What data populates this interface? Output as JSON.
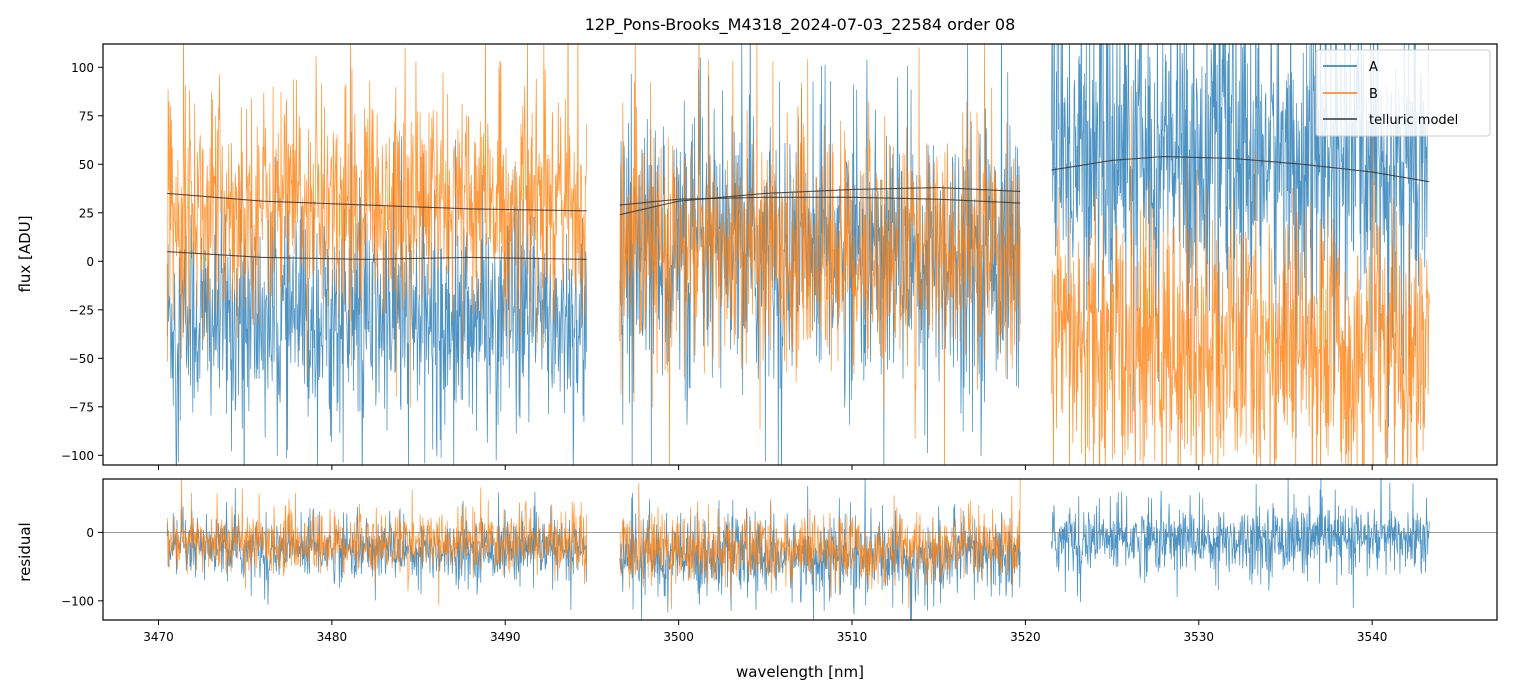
{
  "colors": {
    "A": "#1f77b4",
    "B": "#ff7f0e",
    "telluric": "#333333",
    "zero": "#808080"
  },
  "chart_data": [
    {
      "panel": "top",
      "type": "line",
      "title": "12P_Pons-Brooks_M4318_2024-07-03_22584  order 08",
      "xlabel": "",
      "ylabel": "flux [ADU]",
      "xlim": [
        3466.8,
        3547.2
      ],
      "ylim": [
        -105,
        112
      ],
      "yticks": [
        100,
        75,
        50,
        25,
        0,
        -25,
        -50,
        -75,
        -100
      ],
      "ytick_labels": [
        "100",
        "75",
        "50",
        "25",
        "0",
        "−25",
        "−50",
        "−75",
        "−100"
      ],
      "legend": {
        "location": "top-right",
        "entries": [
          "A",
          "B",
          "telluric model"
        ]
      },
      "segments": [
        {
          "x_range": [
            3470.5,
            3494.7
          ],
          "A": {
            "mean": -30,
            "noise_std": 28,
            "telluric": [
              [
                3470.5,
                5
              ],
              [
                3476,
                2
              ],
              [
                3482,
                1
              ],
              [
                3488,
                2
              ],
              [
                3494.7,
                1
              ]
            ]
          },
          "B": {
            "mean": 30,
            "noise_std": 28,
            "telluric": [
              [
                3470.5,
                35
              ],
              [
                3476,
                31
              ],
              [
                3482,
                29
              ],
              [
                3488,
                27
              ],
              [
                3494.7,
                26
              ]
            ]
          }
        },
        {
          "x_range": [
            3496.6,
            3519.7
          ],
          "A": {
            "mean": 5,
            "noise_std": 35,
            "telluric": [
              [
                3496.6,
                24
              ],
              [
                3500,
                31
              ],
              [
                3505,
                35
              ],
              [
                3510,
                37
              ],
              [
                3515,
                38
              ],
              [
                3519.7,
                36
              ]
            ]
          },
          "B": {
            "mean": 5,
            "noise_std": 30,
            "telluric": [
              [
                3496.6,
                29
              ],
              [
                3500,
                32
              ],
              [
                3505,
                33
              ],
              [
                3510,
                33
              ],
              [
                3515,
                32
              ],
              [
                3519.7,
                30
              ]
            ]
          }
        },
        {
          "x_range": [
            3521.5,
            3543.3
          ],
          "A": {
            "mean": 55,
            "noise_std": 40,
            "telluric": [
              [
                3521.5,
                47
              ],
              [
                3525,
                52
              ],
              [
                3528,
                54
              ],
              [
                3532,
                53
              ],
              [
                3536,
                50
              ],
              [
                3540,
                46
              ],
              [
                3543.3,
                41
              ]
            ]
          },
          "B": {
            "mean": -45,
            "noise_std": 35,
            "telluric": null
          }
        }
      ]
    },
    {
      "panel": "bottom",
      "type": "line",
      "xlabel": "wavelength [nm]",
      "ylabel": "residual",
      "xlim": [
        3466.8,
        3547.2
      ],
      "ylim": [
        -128,
        78
      ],
      "yticks": [
        0,
        -100
      ],
      "ytick_labels": [
        "0",
        "−100"
      ],
      "xticks": [
        3470,
        3480,
        3490,
        3500,
        3510,
        3520,
        3530,
        3540
      ],
      "xtick_labels": [
        "3470",
        "3480",
        "3490",
        "3500",
        "3510",
        "3520",
        "3530",
        "3540"
      ],
      "zero_line": 0,
      "segments": [
        {
          "x_range": [
            3470.5,
            3494.7
          ],
          "A": {
            "mean": -25,
            "noise_std": 22
          },
          "B": {
            "mean": -15,
            "noise_std": 22
          }
        },
        {
          "x_range": [
            3496.6,
            3519.7
          ],
          "A": {
            "mean": -35,
            "noise_std": 28
          },
          "B": {
            "mean": -25,
            "noise_std": 25
          }
        },
        {
          "x_range": [
            3521.5,
            3543.3
          ],
          "A": {
            "mean": -10,
            "noise_std": 25
          },
          "B": null
        }
      ]
    }
  ]
}
